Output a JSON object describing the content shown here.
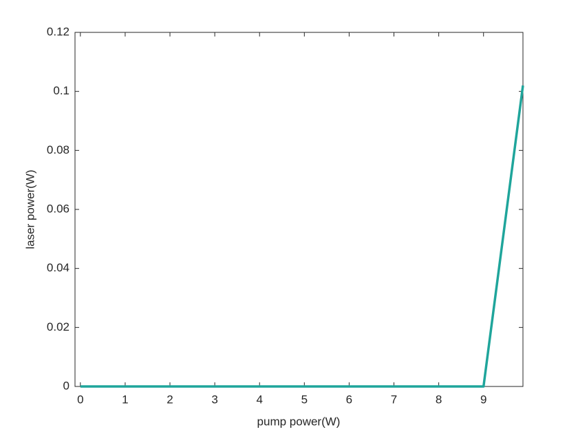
{
  "chart_data": {
    "type": "line",
    "x_label": "pump power(W)",
    "y_label": "laser power(W)",
    "x": [
      0,
      9,
      9.88
    ],
    "values": [
      0,
      0,
      0.102
    ],
    "color": "#1fa59b",
    "xlim": [
      -0.12,
      9.88
    ],
    "xticks": [
      0,
      1,
      2,
      3,
      4,
      5,
      6,
      7,
      8,
      9
    ],
    "ylim": [
      0,
      0.12
    ],
    "yticks": [
      0,
      0.02,
      0.04,
      0.06,
      0.08,
      0.1,
      0.12
    ],
    "grid": false,
    "box": true
  }
}
